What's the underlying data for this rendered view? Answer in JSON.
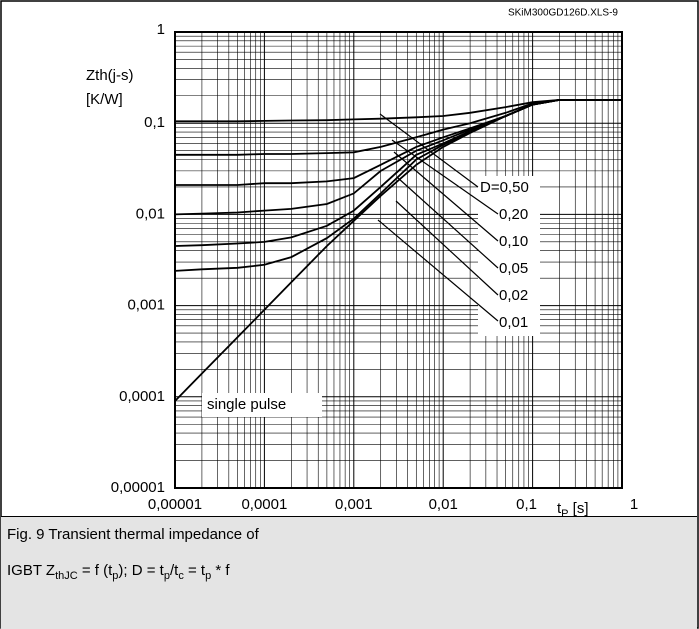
{
  "chart_data": {
    "type": "line",
    "source": "SKiM300GD126D.XLS-9",
    "y_label": [
      "Zth(j-s)",
      "[K/W]"
    ],
    "x_label": [
      "t",
      "P",
      " [s]"
    ],
    "log_x": true,
    "log_y": true,
    "grid": true,
    "color": "#000000",
    "xlim": [
      1e-05,
      1
    ],
    "ylim": [
      1e-05,
      1
    ],
    "xticks": [
      {
        "value": 1e-05,
        "label": "0,00001"
      },
      {
        "value": 0.0001,
        "label": "0,0001"
      },
      {
        "value": 0.001,
        "label": "0,001"
      },
      {
        "value": 0.01,
        "label": "0,01"
      },
      {
        "value": 0.1,
        "label": "0,1"
      },
      1
    ],
    "yticks": [
      {
        "value": 1e-05,
        "label": "0,00001"
      },
      {
        "value": 0.0001,
        "label": "0,0001"
      },
      {
        "value": 0.001,
        "label": "0,001"
      },
      {
        "value": 0.01,
        "label": "0,01"
      },
      {
        "value": 0.1,
        "label": "0,1"
      },
      1
    ],
    "x": [
      1e-05,
      2e-05,
      5e-05,
      0.0001,
      0.0002,
      0.0005,
      0.001,
      0.002,
      0.005,
      0.01,
      0.02,
      0.05,
      0.1,
      0.2,
      0.5,
      1
    ],
    "series": [
      {
        "name": "D=0,50",
        "values": [
          0.105,
          0.105,
          0.105,
          0.106,
          0.107,
          0.108,
          0.11,
          0.112,
          0.116,
          0.12,
          0.13,
          0.15,
          0.17,
          0.18,
          0.18,
          0.18
        ]
      },
      {
        "name": "0,20",
        "values": [
          0.045,
          0.045,
          0.045,
          0.046,
          0.046,
          0.047,
          0.048,
          0.055,
          0.07,
          0.085,
          0.1,
          0.13,
          0.165,
          0.18,
          0.18,
          0.18
        ]
      },
      {
        "name": "0,10",
        "values": [
          0.021,
          0.021,
          0.021,
          0.022,
          0.022,
          0.023,
          0.025,
          0.035,
          0.055,
          0.07,
          0.088,
          0.12,
          0.16,
          0.18,
          0.18,
          0.18
        ]
      },
      {
        "name": "0,05",
        "values": [
          0.01,
          0.0102,
          0.0105,
          0.011,
          0.0115,
          0.013,
          0.017,
          0.03,
          0.05,
          0.065,
          0.085,
          0.12,
          0.16,
          0.18,
          0.18,
          0.18
        ]
      },
      {
        "name": "0,02",
        "values": [
          0.0045,
          0.0046,
          0.0048,
          0.005,
          0.0056,
          0.0075,
          0.011,
          0.02,
          0.045,
          0.06,
          0.082,
          0.12,
          0.16,
          0.18,
          0.18,
          0.18
        ]
      },
      {
        "name": "0,01",
        "values": [
          0.0024,
          0.0025,
          0.0026,
          0.0028,
          0.0034,
          0.0055,
          0.009,
          0.017,
          0.04,
          0.058,
          0.08,
          0.12,
          0.16,
          0.18,
          0.18,
          0.18
        ]
      },
      {
        "name": "single pulse",
        "values": [
          9e-05,
          0.00018,
          0.00045,
          0.0009,
          0.0018,
          0.0045,
          0.0085,
          0.016,
          0.035,
          0.055,
          0.078,
          0.12,
          0.16,
          0.18,
          0.18,
          0.18
        ]
      }
    ],
    "caption": {
      "line1": "Fig. 9 Transient thermal impedance of",
      "line2": [
        [
          "IGBT Z",
          "thJC"
        ],
        [
          " = f (t",
          "p"
        ],
        [
          "); D = t",
          "p"
        ],
        [
          "/t",
          "c"
        ],
        [
          " = t",
          "p"
        ],
        [
          " * f"
        ]
      ]
    }
  }
}
